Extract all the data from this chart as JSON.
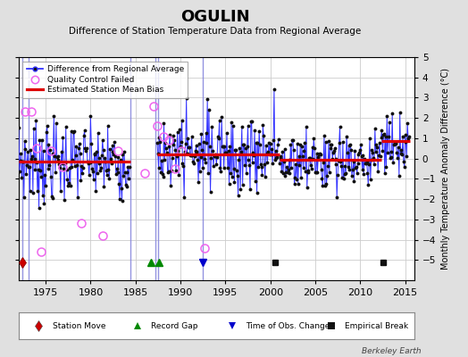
{
  "title": "OGULIN",
  "subtitle": "Difference of Station Temperature Data from Regional Average",
  "ylabel": "Monthly Temperature Anomaly Difference (°C)",
  "ylim": [
    -6,
    5
  ],
  "yticks": [
    -5,
    -4,
    -3,
    -2,
    -1,
    0,
    1,
    2,
    3,
    4,
    5
  ],
  "xlim": [
    1972.0,
    2016.0
  ],
  "xticks": [
    1975,
    1980,
    1985,
    1990,
    1995,
    2000,
    2005,
    2010,
    2015
  ],
  "background_color": "#e0e0e0",
  "plot_bg_color": "#ffffff",
  "grid_color": "#cccccc",
  "watermark": "Berkeley Earth",
  "segments": [
    {
      "start": 1972.0,
      "end": 1984.4,
      "bias": -0.15
    },
    {
      "start": 1987.4,
      "end": 2001.0,
      "bias": 0.22
    },
    {
      "start": 2001.0,
      "end": 2012.3,
      "bias": -0.05
    },
    {
      "start": 2012.3,
      "end": 2015.5,
      "bias": 0.85
    }
  ],
  "vlines": [
    1972.4,
    1973.1,
    1984.4,
    1987.2,
    1987.5,
    1992.5
  ],
  "station_moves": [
    1972.4
  ],
  "record_gaps": [
    1986.7,
    1987.6
  ],
  "time_of_obs_changes": [
    1992.5
  ],
  "empirical_breaks": [
    2000.5,
    2012.5
  ],
  "marker_y": -5.1,
  "qc_failed_points": [
    [
      1972.7,
      2.3
    ],
    [
      1973.4,
      2.3
    ],
    [
      1974.0,
      0.5
    ],
    [
      1974.5,
      -4.6
    ],
    [
      1975.6,
      0.4
    ],
    [
      1976.9,
      -0.4
    ],
    [
      1979.0,
      -3.2
    ],
    [
      1981.3,
      -3.8
    ],
    [
      1983.0,
      0.4
    ],
    [
      1986.0,
      -0.7
    ],
    [
      1987.0,
      2.6
    ],
    [
      1987.4,
      1.6
    ],
    [
      1988.1,
      1.1
    ],
    [
      1988.7,
      0.9
    ],
    [
      1989.4,
      -0.5
    ],
    [
      1990.1,
      0.4
    ],
    [
      1992.7,
      -4.4
    ]
  ]
}
